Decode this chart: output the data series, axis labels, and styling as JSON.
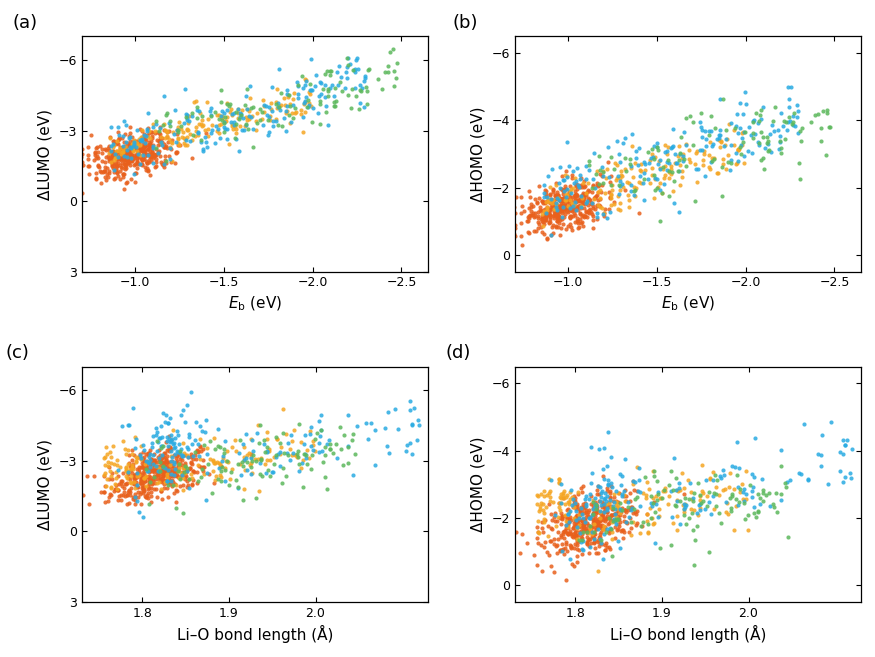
{
  "colors": {
    "orange": "#E8601C",
    "blue": "#29ABE2",
    "green": "#5CB85C",
    "yellow": "#F5A623"
  },
  "panel_labels": [
    "(a)",
    "(b)",
    "(c)",
    "(d)"
  ],
  "ax_a": {
    "xlabel": "$E_{\\mathrm{b}}$ (eV)",
    "ylabel": "ΔLUMO (eV)",
    "xlim": [
      -0.7,
      -2.65
    ],
    "ylim": [
      3,
      -7
    ],
    "xticks": [
      -1.0,
      -1.5,
      -2.0,
      -2.5
    ],
    "yticks": [
      3,
      0,
      -3,
      -6
    ]
  },
  "ax_b": {
    "xlabel": "$E_{\\mathrm{b}}$ (eV)",
    "ylabel": "ΔHOMO (eV)",
    "xlim": [
      -0.7,
      -2.65
    ],
    "ylim": [
      0.5,
      -6.5
    ],
    "xticks": [
      -1.0,
      -1.5,
      -2.0,
      -2.5
    ],
    "yticks": [
      0,
      -2,
      -4,
      -6
    ]
  },
  "ax_c": {
    "xlabel": "Li–O bond length (Å)",
    "ylabel": "ΔLUMO (eV)",
    "xlim": [
      1.73,
      2.13
    ],
    "ylim": [
      3,
      -7
    ],
    "xticks": [
      1.8,
      1.9,
      2.0
    ],
    "yticks": [
      3,
      0,
      -3,
      -6
    ]
  },
  "ax_d": {
    "xlabel": "Li–O bond length (Å)",
    "ylabel": "ΔHOMO (eV)",
    "xlim": [
      1.73,
      2.13
    ],
    "ylim": [
      0.5,
      -6.5
    ],
    "xticks": [
      1.8,
      1.9,
      2.0
    ],
    "yticks": [
      0,
      -2,
      -4,
      -6
    ]
  },
  "seed": 42,
  "n_orange": 420,
  "n_blue": 200,
  "n_green": 110,
  "n_yellow": 170,
  "point_size": 9,
  "alpha": 0.85,
  "background": "#ffffff",
  "tick_fontsize": 9,
  "label_fontsize": 11
}
